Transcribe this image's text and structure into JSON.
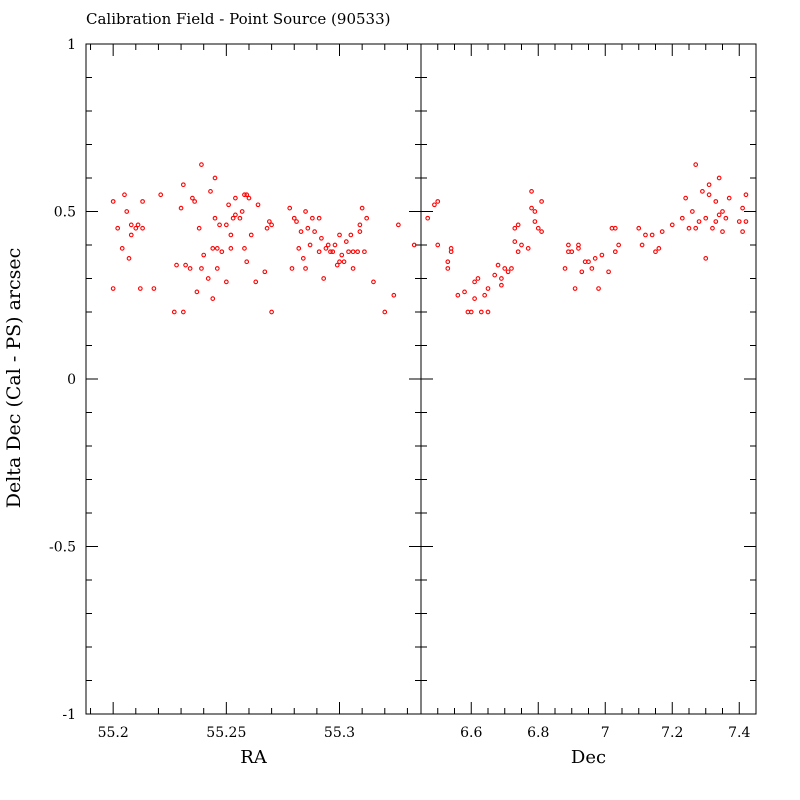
{
  "chart_data": {
    "type": "scatter",
    "title": "Calibration Field - Point Source (90533)",
    "ylabel": "Delta Dec (Cal - PS) arcsec",
    "ylim": [
      -1,
      1
    ],
    "yticks": [
      "1",
      "0.5",
      "0",
      "-0.5",
      "-1"
    ],
    "marker_color": "#ff0000",
    "panels": [
      {
        "xlabel": "RA",
        "xlim": [
          55.188,
          55.336
        ],
        "xticks": [
          "55.2",
          "55.25",
          "55.3"
        ],
        "points": [
          [
            55.2,
            0.27
          ],
          [
            55.2,
            0.53
          ],
          [
            55.202,
            0.45
          ],
          [
            55.204,
            0.39
          ],
          [
            55.205,
            0.55
          ],
          [
            55.206,
            0.5
          ],
          [
            55.207,
            0.36
          ],
          [
            55.208,
            0.43
          ],
          [
            55.208,
            0.46
          ],
          [
            55.21,
            0.45
          ],
          [
            55.211,
            0.46
          ],
          [
            55.212,
            0.27
          ],
          [
            55.213,
            0.45
          ],
          [
            55.213,
            0.53
          ],
          [
            55.218,
            0.27
          ],
          [
            55.221,
            0.55
          ],
          [
            55.227,
            0.2
          ],
          [
            55.228,
            0.34
          ],
          [
            55.23,
            0.51
          ],
          [
            55.231,
            0.58
          ],
          [
            55.231,
            0.2
          ],
          [
            55.232,
            0.34
          ],
          [
            55.234,
            0.33
          ],
          [
            55.235,
            0.54
          ],
          [
            55.236,
            0.53
          ],
          [
            55.237,
            0.26
          ],
          [
            55.238,
            0.45
          ],
          [
            55.239,
            0.64
          ],
          [
            55.239,
            0.33
          ],
          [
            55.24,
            0.37
          ],
          [
            55.242,
            0.3
          ],
          [
            55.243,
            0.56
          ],
          [
            55.244,
            0.24
          ],
          [
            55.244,
            0.39
          ],
          [
            55.245,
            0.6
          ],
          [
            55.245,
            0.48
          ],
          [
            55.246,
            0.33
          ],
          [
            55.246,
            0.39
          ],
          [
            55.247,
            0.46
          ],
          [
            55.248,
            0.38
          ],
          [
            55.25,
            0.46
          ],
          [
            55.25,
            0.29
          ],
          [
            55.251,
            0.52
          ],
          [
            55.252,
            0.43
          ],
          [
            55.252,
            0.39
          ],
          [
            55.253,
            0.48
          ],
          [
            55.254,
            0.49
          ],
          [
            55.254,
            0.54
          ],
          [
            55.256,
            0.48
          ],
          [
            55.257,
            0.5
          ],
          [
            55.258,
            0.55
          ],
          [
            55.258,
            0.39
          ],
          [
            55.259,
            0.35
          ],
          [
            55.259,
            0.55
          ],
          [
            55.26,
            0.54
          ],
          [
            55.261,
            0.43
          ],
          [
            55.263,
            0.29
          ],
          [
            55.264,
            0.52
          ],
          [
            55.267,
            0.32
          ],
          [
            55.268,
            0.45
          ],
          [
            55.269,
            0.47
          ],
          [
            55.27,
            0.2
          ],
          [
            55.27,
            0.46
          ],
          [
            55.278,
            0.51
          ],
          [
            55.279,
            0.33
          ],
          [
            55.28,
            0.48
          ],
          [
            55.281,
            0.47
          ],
          [
            55.282,
            0.39
          ],
          [
            55.283,
            0.44
          ],
          [
            55.284,
            0.36
          ],
          [
            55.285,
            0.5
          ],
          [
            55.285,
            0.33
          ],
          [
            55.286,
            0.45
          ],
          [
            55.287,
            0.4
          ],
          [
            55.288,
            0.48
          ],
          [
            55.289,
            0.44
          ],
          [
            55.291,
            0.48
          ],
          [
            55.291,
            0.38
          ],
          [
            55.292,
            0.42
          ],
          [
            55.293,
            0.3
          ],
          [
            55.294,
            0.39
          ],
          [
            55.295,
            0.4
          ],
          [
            55.296,
            0.38
          ],
          [
            55.297,
            0.38
          ],
          [
            55.298,
            0.4
          ],
          [
            55.299,
            0.34
          ],
          [
            55.3,
            0.43
          ],
          [
            55.3,
            0.35
          ],
          [
            55.301,
            0.37
          ],
          [
            55.302,
            0.35
          ],
          [
            55.303,
            0.41
          ],
          [
            55.304,
            0.38
          ],
          [
            55.305,
            0.43
          ],
          [
            55.306,
            0.33
          ],
          [
            55.306,
            0.38
          ],
          [
            55.308,
            0.38
          ],
          [
            55.309,
            0.44
          ],
          [
            55.309,
            0.46
          ],
          [
            55.31,
            0.51
          ],
          [
            55.311,
            0.38
          ],
          [
            55.312,
            0.48
          ],
          [
            55.315,
            0.29
          ],
          [
            55.32,
            0.2
          ],
          [
            55.324,
            0.25
          ],
          [
            55.326,
            0.46
          ],
          [
            55.333,
            0.4
          ]
        ]
      },
      {
        "xlabel": "Dec",
        "xlim": [
          6.45,
          7.45
        ],
        "xticks": [
          "6.6",
          "6.8",
          "7",
          "7.2",
          "7.4"
        ],
        "points": [
          [
            6.47,
            0.48
          ],
          [
            6.49,
            0.52
          ],
          [
            6.5,
            0.53
          ],
          [
            6.5,
            0.4
          ],
          [
            6.53,
            0.33
          ],
          [
            6.53,
            0.35
          ],
          [
            6.54,
            0.38
          ],
          [
            6.54,
            0.39
          ],
          [
            6.56,
            0.25
          ],
          [
            6.58,
            0.26
          ],
          [
            6.59,
            0.2
          ],
          [
            6.6,
            0.2
          ],
          [
            6.61,
            0.24
          ],
          [
            6.61,
            0.29
          ],
          [
            6.62,
            0.3
          ],
          [
            6.63,
            0.2
          ],
          [
            6.64,
            0.25
          ],
          [
            6.65,
            0.27
          ],
          [
            6.65,
            0.2
          ],
          [
            6.67,
            0.31
          ],
          [
            6.68,
            0.34
          ],
          [
            6.69,
            0.3
          ],
          [
            6.69,
            0.28
          ],
          [
            6.7,
            0.33
          ],
          [
            6.71,
            0.32
          ],
          [
            6.72,
            0.33
          ],
          [
            6.73,
            0.41
          ],
          [
            6.73,
            0.45
          ],
          [
            6.74,
            0.46
          ],
          [
            6.74,
            0.38
          ],
          [
            6.75,
            0.4
          ],
          [
            6.77,
            0.39
          ],
          [
            6.78,
            0.51
          ],
          [
            6.78,
            0.56
          ],
          [
            6.79,
            0.47
          ],
          [
            6.79,
            0.5
          ],
          [
            6.8,
            0.45
          ],
          [
            6.81,
            0.44
          ],
          [
            6.81,
            0.53
          ],
          [
            6.88,
            0.33
          ],
          [
            6.89,
            0.38
          ],
          [
            6.89,
            0.4
          ],
          [
            6.9,
            0.38
          ],
          [
            6.91,
            0.27
          ],
          [
            6.92,
            0.4
          ],
          [
            6.92,
            0.39
          ],
          [
            6.93,
            0.32
          ],
          [
            6.94,
            0.35
          ],
          [
            6.95,
            0.35
          ],
          [
            6.96,
            0.33
          ],
          [
            6.97,
            0.36
          ],
          [
            6.98,
            0.27
          ],
          [
            6.99,
            0.37
          ],
          [
            7.01,
            0.32
          ],
          [
            7.02,
            0.45
          ],
          [
            7.03,
            0.38
          ],
          [
            7.03,
            0.45
          ],
          [
            7.04,
            0.4
          ],
          [
            7.1,
            0.45
          ],
          [
            7.11,
            0.4
          ],
          [
            7.12,
            0.43
          ],
          [
            7.14,
            0.43
          ],
          [
            7.15,
            0.38
          ],
          [
            7.16,
            0.39
          ],
          [
            7.17,
            0.44
          ],
          [
            7.2,
            0.46
          ],
          [
            7.23,
            0.48
          ],
          [
            7.24,
            0.54
          ],
          [
            7.25,
            0.45
          ],
          [
            7.26,
            0.5
          ],
          [
            7.27,
            0.64
          ],
          [
            7.27,
            0.45
          ],
          [
            7.28,
            0.47
          ],
          [
            7.29,
            0.56
          ],
          [
            7.3,
            0.48
          ],
          [
            7.3,
            0.36
          ],
          [
            7.31,
            0.55
          ],
          [
            7.31,
            0.58
          ],
          [
            7.32,
            0.45
          ],
          [
            7.33,
            0.47
          ],
          [
            7.33,
            0.53
          ],
          [
            7.34,
            0.6
          ],
          [
            7.34,
            0.49
          ],
          [
            7.35,
            0.5
          ],
          [
            7.35,
            0.44
          ],
          [
            7.36,
            0.48
          ],
          [
            7.37,
            0.54
          ],
          [
            7.4,
            0.47
          ],
          [
            7.41,
            0.51
          ],
          [
            7.41,
            0.44
          ],
          [
            7.42,
            0.55
          ],
          [
            7.42,
            0.47
          ]
        ]
      }
    ]
  }
}
